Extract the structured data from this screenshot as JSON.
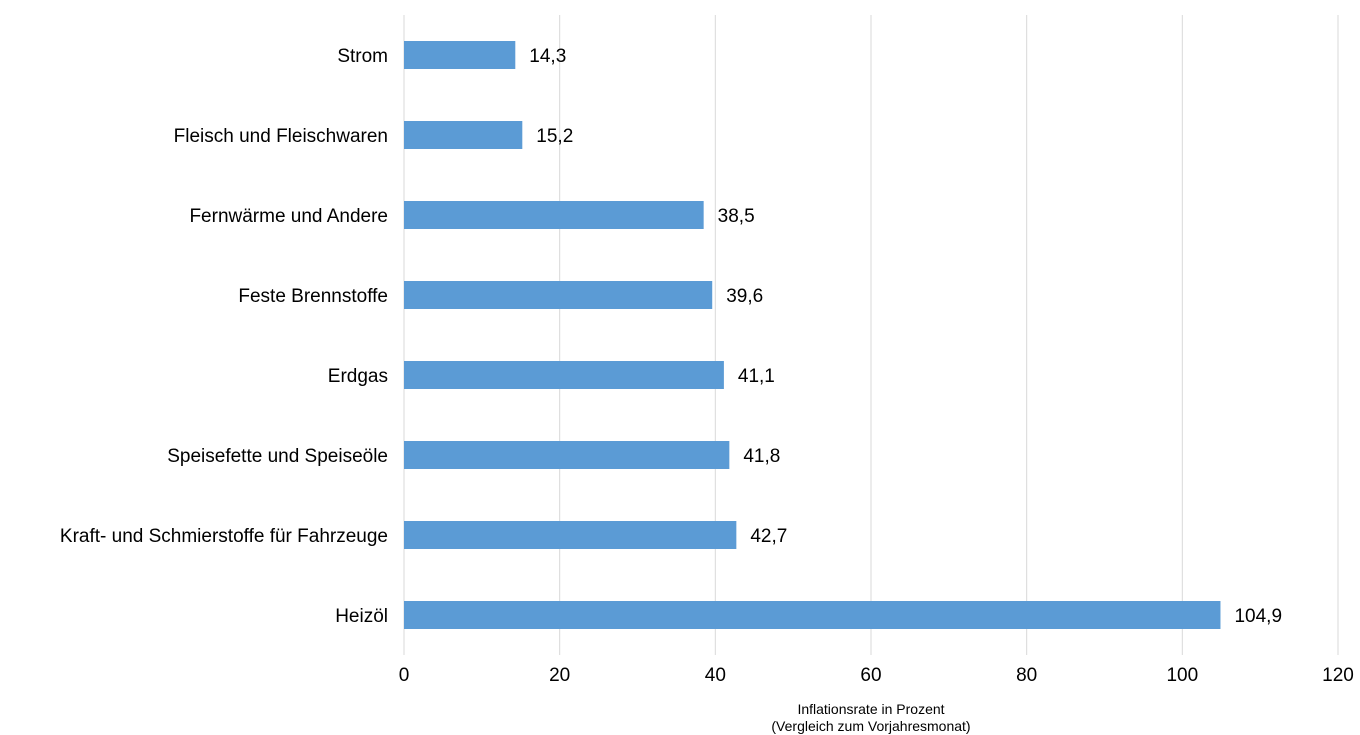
{
  "chart_data": {
    "type": "bar",
    "orientation": "horizontal",
    "categories": [
      "Strom",
      "Fleisch und Fleischwaren",
      "Fernwärme und Andere",
      "Feste Brennstoffe",
      "Erdgas",
      "Speisefette und Speiseöle",
      "Kraft- und Schmierstoffe für Fahrzeuge",
      "Heizöl"
    ],
    "values": [
      14.3,
      15.2,
      38.5,
      39.6,
      41.1,
      41.8,
      42.7,
      104.9
    ],
    "value_labels": [
      "14,3",
      "15,2",
      "38,5",
      "39,6",
      "41,1",
      "41,8",
      "42,7",
      "104,9"
    ],
    "xlim": [
      0,
      120
    ],
    "x_ticks": [
      0,
      20,
      40,
      60,
      80,
      100,
      120
    ],
    "xlabel_lines": [
      "Inflationsrate in Prozent",
      "(Vergleich zum Vorjahresmonat)"
    ],
    "grid": "vertical",
    "bar_color": "#5b9bd5"
  }
}
